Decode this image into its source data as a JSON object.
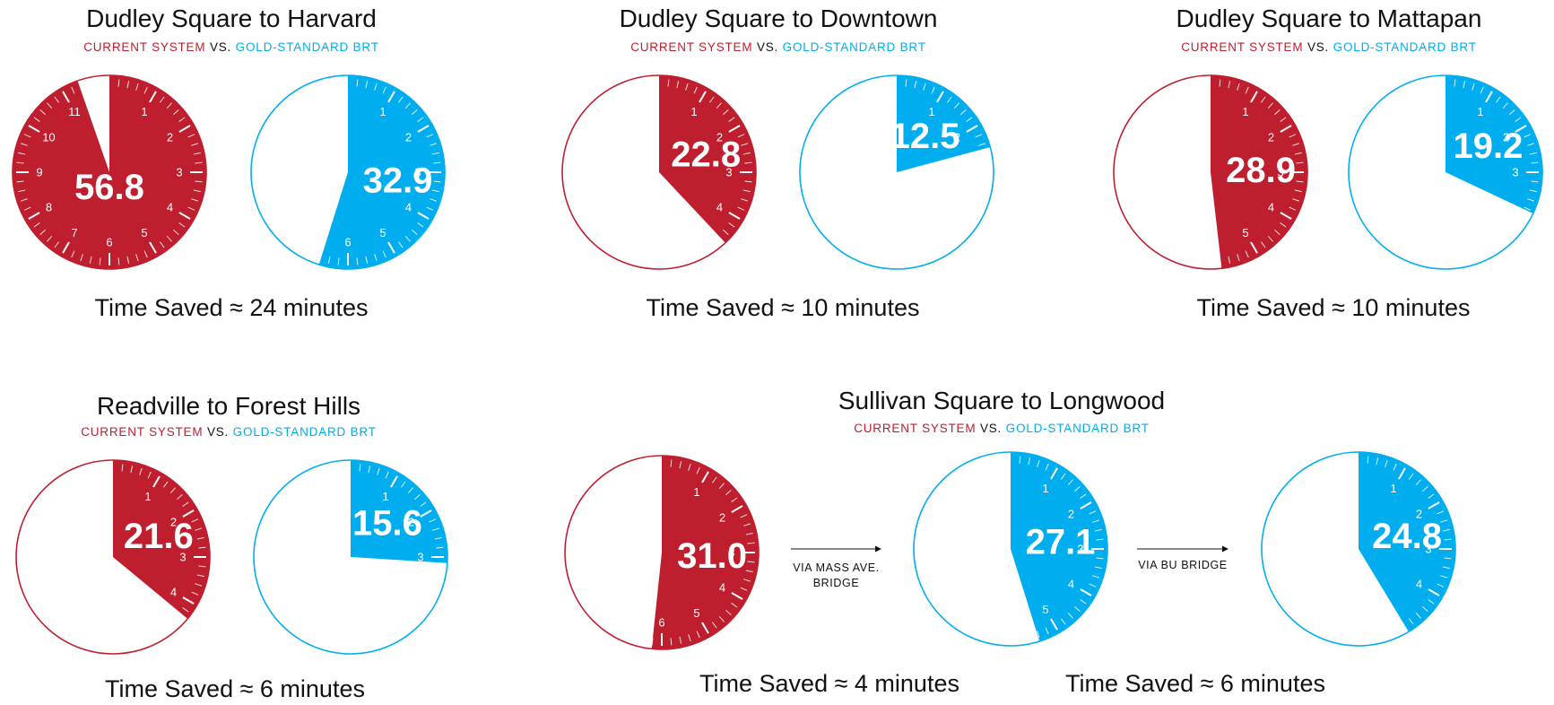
{
  "colors": {
    "current": "#bf1e2e",
    "brt": "#00aeef",
    "text": "#111111"
  },
  "legend": {
    "current": "CURRENT SYSTEM",
    "vs": "VS.",
    "brt": "GOLD-STANDARD BRT"
  },
  "chart_data": [
    {
      "type": "pie",
      "title": "Dudley Square to Harvard",
      "unit": "minutes",
      "current_minutes": 56.8,
      "brt": [
        {
          "minutes": 32.9
        }
      ],
      "time_saved": [
        "Time Saved ≈ 24 minutes"
      ]
    },
    {
      "type": "pie",
      "title": "Dudley Square to Downtown",
      "unit": "minutes",
      "current_minutes": 22.8,
      "brt": [
        {
          "minutes": 12.5
        }
      ],
      "time_saved": [
        "Time Saved ≈ 10 minutes"
      ]
    },
    {
      "type": "pie",
      "title": "Dudley Square to Mattapan",
      "unit": "minutes",
      "current_minutes": 28.9,
      "brt": [
        {
          "minutes": 19.2
        }
      ],
      "time_saved": [
        "Time Saved ≈ 10 minutes"
      ]
    },
    {
      "type": "pie",
      "title": "Readville to Forest Hills",
      "unit": "minutes",
      "current_minutes": 21.6,
      "brt": [
        {
          "minutes": 15.6
        }
      ],
      "time_saved": [
        "Time Saved ≈ 6 minutes"
      ]
    },
    {
      "type": "pie",
      "title": "Sullivan Square to Longwood",
      "unit": "minutes",
      "current_minutes": 31.0,
      "brt": [
        {
          "minutes": 27.1,
          "via": [
            "VIA MASS AVE.",
            "BRIDGE"
          ]
        },
        {
          "minutes": 24.8,
          "via": [
            "VIA BU BRIDGE"
          ]
        }
      ],
      "time_saved": [
        "Time Saved ≈ 4 minutes",
        "Time Saved ≈ 6 minutes"
      ]
    }
  ]
}
